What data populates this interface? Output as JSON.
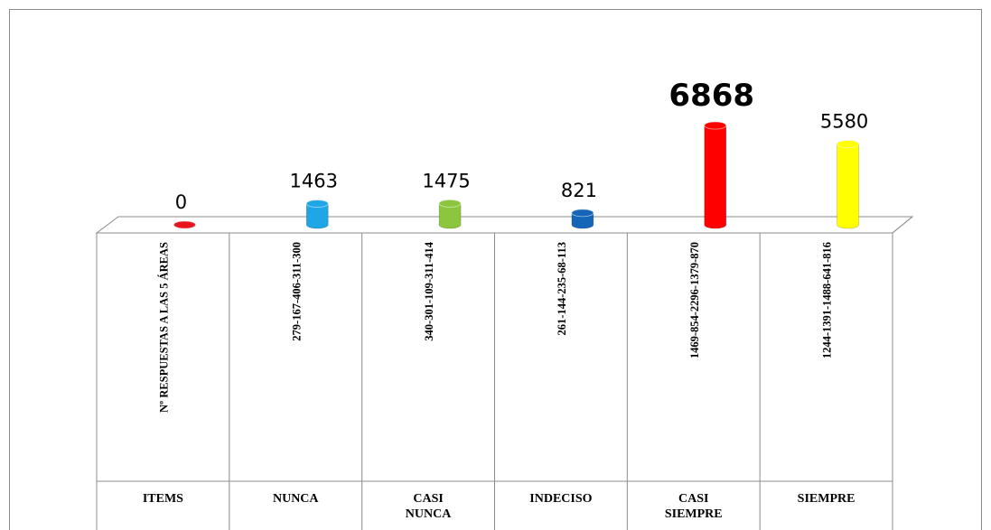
{
  "chart_data": {
    "type": "bar",
    "categories": [
      "Nº RESPUESTAS A LAS 5 ÁREAS",
      "279-167-406-311-300",
      "340-301-109-311-414",
      "261-144-235-68-113",
      "1469-854-2296-1379-870",
      "1244-1391-1488-641-816"
    ],
    "column_labels": [
      "ITEMS",
      "NUNCA",
      "CASI NUNCA",
      "INDECISO",
      "CASI SIEMPRE",
      "SIEMPRE"
    ],
    "values": [
      0,
      1463,
      1475,
      821,
      6868,
      5580
    ],
    "colors": [
      "#e8141e",
      "#1ea6e6",
      "#8cc63e",
      "#1666b8",
      "#ff0000",
      "#ffff00"
    ]
  }
}
